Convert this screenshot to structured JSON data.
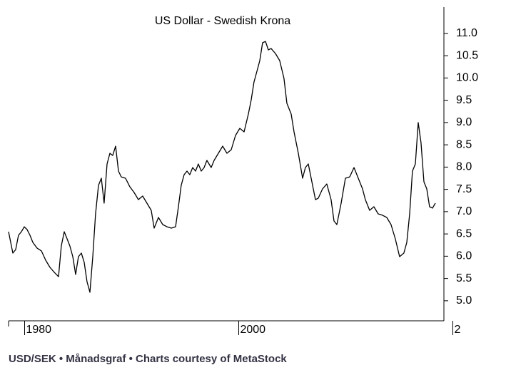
{
  "chart_data": {
    "type": "line",
    "title": "US Dollar - Swedish Krona",
    "footer": "USD/SEK • Månadsgraf • Charts courtesy of MetaStock",
    "xlim": [
      1978.5,
      2019.17
    ],
    "xticks": [
      1980,
      2000,
      {
        "value": 2020,
        "label": "2"
      }
    ],
    "ylim": [
      4.55,
      11.59
    ],
    "yticks": [
      {
        "value": 5,
        "label": "5.0"
      },
      5.5,
      {
        "value": 6,
        "label": "6.0"
      },
      6.5,
      {
        "value": 7,
        "label": "7.0"
      },
      7.5,
      {
        "value": 8,
        "label": "8.0"
      },
      8.5,
      {
        "value": 9,
        "label": "9.0"
      },
      9.5,
      {
        "value": 10,
        "label": "10.0"
      },
      10.5,
      {
        "value": 11,
        "label": "11.0"
      }
    ],
    "color": "#000000",
    "x": [
      1978.5,
      1978.9,
      1979.17,
      1979.43,
      1979.7,
      1979.97,
      1980.23,
      1980.5,
      1980.77,
      1981.17,
      1981.57,
      1981.97,
      1982.37,
      1982.77,
      1983.17,
      1983.43,
      1983.7,
      1983.97,
      1984.23,
      1984.5,
      1984.77,
      1985.03,
      1985.3,
      1985.57,
      1985.83,
      1986.1,
      1986.37,
      1986.63,
      1986.9,
      1987.17,
      1987.43,
      1987.7,
      1987.97,
      1988.23,
      1988.5,
      1988.77,
      1989.03,
      1989.43,
      1989.83,
      1990.23,
      1990.63,
      1991.03,
      1991.43,
      1991.83,
      1992.1,
      1992.5,
      1992.9,
      1993.3,
      1993.7,
      1994.1,
      1994.37,
      1994.63,
      1994.9,
      1995.17,
      1995.43,
      1995.7,
      1995.97,
      1996.23,
      1996.5,
      1996.77,
      1997.03,
      1997.43,
      1997.7,
      1998.1,
      1998.5,
      1998.9,
      1999.3,
      1999.7,
      2000.1,
      2000.5,
      2000.9,
      2001.17,
      2001.43,
      2001.7,
      2001.97,
      2002.23,
      2002.5,
      2002.77,
      2003.03,
      2003.43,
      2003.83,
      2004.23,
      2004.5,
      2004.9,
      2005.17,
      2005.57,
      2005.97,
      2006.23,
      2006.5,
      2006.77,
      2007.17,
      2007.43,
      2007.83,
      2008.23,
      2008.63,
      2008.9,
      2009.17,
      2009.57,
      2009.97,
      2010.37,
      2010.77,
      2011.17,
      2011.57,
      2011.83,
      2012.23,
      2012.63,
      2013.03,
      2013.43,
      2013.83,
      2014.23,
      2014.63,
      2015.03,
      2015.43,
      2015.7,
      2015.97,
      2016.23,
      2016.5,
      2016.77,
      2017.03,
      2017.3,
      2017.57,
      2017.83,
      2018.1,
      2018.37
    ],
    "values": [
      6.55,
      6.07,
      6.15,
      6.47,
      6.55,
      6.66,
      6.6,
      6.47,
      6.31,
      6.18,
      6.12,
      5.91,
      5.75,
      5.64,
      5.54,
      6.23,
      6.55,
      6.39,
      6.23,
      5.99,
      5.59,
      5.99,
      6.07,
      5.86,
      5.43,
      5.19,
      5.99,
      6.95,
      7.59,
      7.75,
      7.19,
      8.07,
      8.31,
      8.26,
      8.47,
      7.91,
      7.78,
      7.75,
      7.56,
      7.43,
      7.27,
      7.35,
      7.19,
      7.03,
      6.63,
      6.87,
      6.71,
      6.66,
      6.63,
      6.66,
      7.11,
      7.59,
      7.83,
      7.91,
      7.83,
      7.99,
      7.91,
      8.07,
      7.91,
      7.99,
      8.15,
      7.99,
      8.15,
      8.31,
      8.47,
      8.31,
      8.39,
      8.71,
      8.87,
      8.79,
      9.19,
      9.51,
      9.91,
      10.15,
      10.39,
      10.79,
      10.82,
      10.63,
      10.66,
      10.55,
      10.39,
      9.99,
      9.43,
      9.19,
      8.79,
      8.31,
      7.75,
      7.99,
      8.07,
      7.75,
      7.27,
      7.3,
      7.51,
      7.62,
      7.27,
      6.79,
      6.71,
      7.19,
      7.75,
      7.78,
      7.99,
      7.75,
      7.51,
      7.27,
      7.03,
      7.11,
      6.95,
      6.92,
      6.87,
      6.71,
      6.39,
      5.99,
      6.07,
      6.31,
      6.95,
      7.91,
      8.07,
      9.0,
      8.55,
      7.67,
      7.51,
      7.11,
      7.08,
      7.19
    ]
  }
}
